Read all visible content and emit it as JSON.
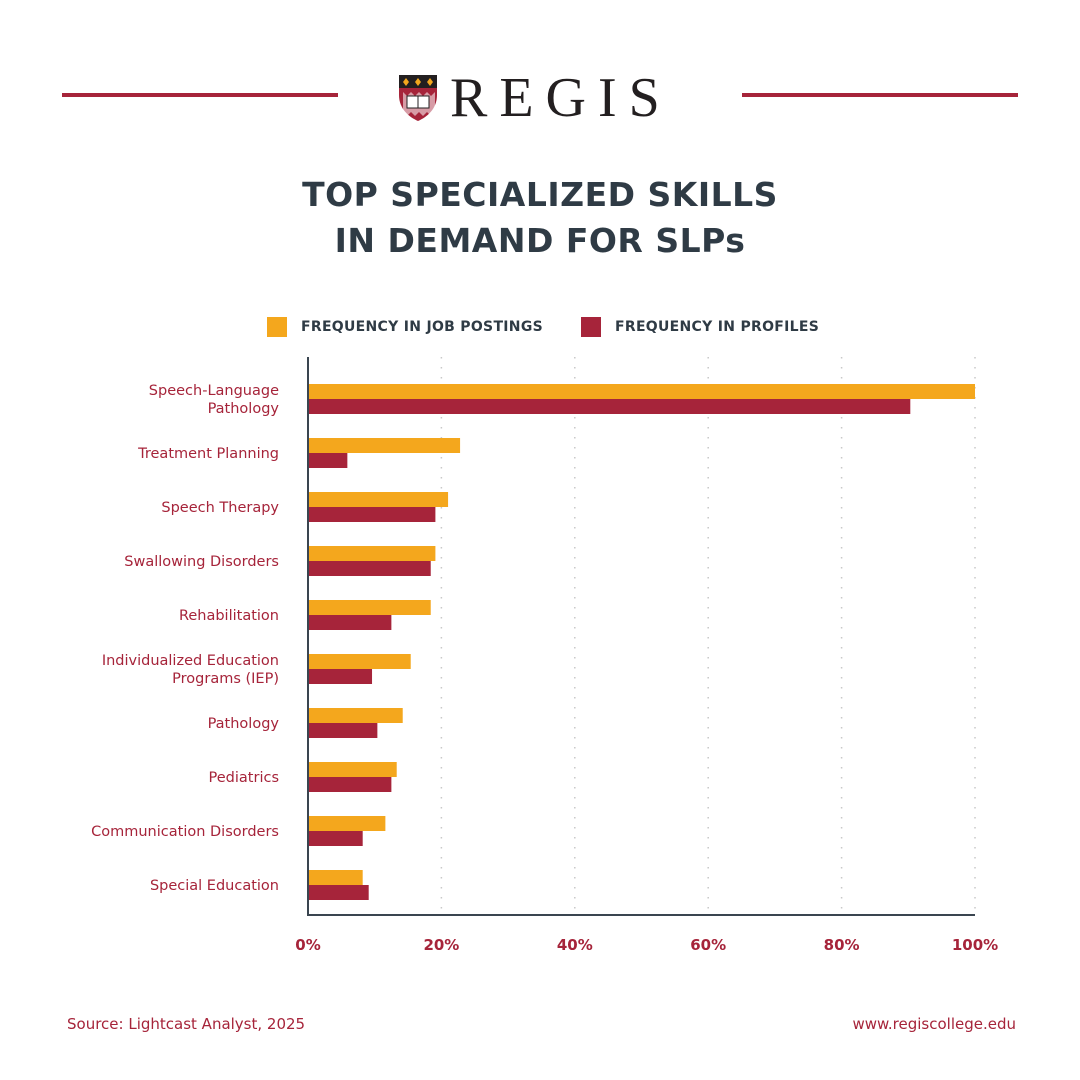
{
  "brand": {
    "name": "REGIS",
    "logo_icon": "shield-crest-icon",
    "color": "#a6243a"
  },
  "title_lines": [
    "TOP SPECIALIZED SKILLS",
    "IN DEMAND FOR SLPs"
  ],
  "chart_data": {
    "type": "bar",
    "orientation": "horizontal",
    "title": "TOP SPECIALIZED SKILLS IN DEMAND FOR SLPs",
    "categories": [
      [
        "Speech-Language",
        "Pathology"
      ],
      [
        "Treatment Planning"
      ],
      [
        "Speech Therapy"
      ],
      [
        "Swallowing Disorders"
      ],
      [
        "Rehabilitation"
      ],
      [
        "Individualized Education",
        "Programs (IEP)"
      ],
      [
        "Pathology"
      ],
      [
        "Pediatrics"
      ],
      [
        "Communication Disorders"
      ],
      [
        "Special Education"
      ]
    ],
    "series": [
      {
        "name": "FREQUENCY IN JOB POSTINGS",
        "color": "#f4a71d",
        "values": [
          100,
          22.8,
          21.0,
          19.1,
          18.4,
          15.4,
          14.2,
          13.3,
          11.6,
          8.2
        ]
      },
      {
        "name": "FREQUENCY IN PROFILES",
        "color": "#a6243a",
        "values": [
          90.3,
          5.9,
          19.1,
          18.4,
          12.5,
          9.6,
          10.4,
          12.5,
          8.2,
          9.1
        ]
      }
    ],
    "xlim": [
      0,
      100
    ],
    "xticks": [
      "0%",
      "20%",
      "40%",
      "60%",
      "80%",
      "100%"
    ],
    "grid": "vertical dotted",
    "legend": "top"
  },
  "footer": {
    "source": "Source: Lightcast Analyst, 2025",
    "url": "www.regiscollege.edu"
  }
}
